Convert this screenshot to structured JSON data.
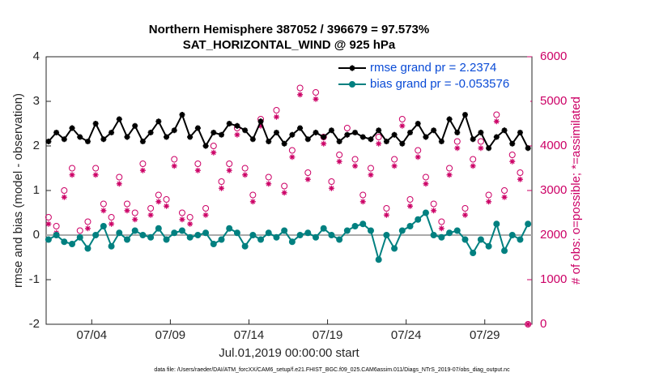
{
  "chart_data": {
    "type": "line",
    "title": "Northern Hemisphere 387052 / 396679 = 97.573%",
    "subtitle": "SAT_HORIZONTAL_WIND @ 925 hPa",
    "x_label": "Jul.01,2019 00:00:00 start",
    "y_label": "rmse and bias (model - observation)",
    "y2_label": "# of obs: o=possible; *=assimilated",
    "footnote": "data file: /Users/raeder/DAI/ATM_forcXX/CAM6_setup/f.e21.FHIST_BGC.f09_025.CAM6assim.011/Diags_NTrS_2019-07/obs_diag_output.nc",
    "x": [
      0.25,
      0.75,
      1.25,
      1.75,
      2.25,
      2.75,
      3.25,
      3.75,
      4.25,
      4.75,
      5.25,
      5.75,
      6.25,
      6.75,
      7.25,
      7.75,
      8.25,
      8.75,
      9.25,
      9.75,
      10.25,
      10.75,
      11.25,
      11.75,
      12.25,
      12.75,
      13.25,
      13.75,
      14.25,
      14.75,
      15.25,
      15.75,
      16.25,
      16.75,
      17.25,
      17.75,
      18.25,
      18.75,
      19.25,
      19.75,
      20.25,
      20.75,
      21.25,
      21.75,
      22.25,
      22.75,
      23.25,
      23.75,
      24.25,
      24.75,
      25.25,
      25.75,
      26.25,
      26.75,
      27.25,
      27.75,
      28.25,
      28.75,
      29.25,
      29.75,
      30.25,
      30.75
    ],
    "xlim": [
      0.1,
      31.0
    ],
    "xticks": [
      {
        "value": 3,
        "label": "07/04"
      },
      {
        "value": 8,
        "label": "07/09"
      },
      {
        "value": 13,
        "label": "07/14"
      },
      {
        "value": 18,
        "label": "07/19"
      },
      {
        "value": 23,
        "label": "07/24"
      },
      {
        "value": 28,
        "label": "07/29"
      }
    ],
    "ylim": [
      -2,
      4
    ],
    "yticks": [
      -2,
      -1,
      0,
      1,
      2,
      3,
      4
    ],
    "y2lim": [
      0,
      6000
    ],
    "y2ticks": [
      0,
      1000,
      2000,
      3000,
      4000,
      5000,
      6000
    ],
    "zero_line": true,
    "legend": "upper right",
    "series": [
      {
        "name": "rmse grand pr = 2.2374",
        "color": "#000000",
        "marker": "asterisk",
        "line": true,
        "values": [
          2.1,
          2.3,
          2.15,
          2.4,
          2.2,
          2.1,
          2.5,
          2.15,
          2.3,
          2.6,
          2.2,
          2.45,
          2.1,
          2.3,
          2.55,
          2.2,
          2.35,
          2.7,
          2.2,
          2.4,
          2.0,
          2.3,
          2.25,
          2.5,
          2.45,
          2.35,
          2.15,
          2.55,
          2.1,
          2.3,
          2.05,
          2.25,
          2.4,
          2.15,
          2.3,
          2.2,
          2.35,
          2.1,
          2.25,
          2.3,
          2.2,
          2.15,
          2.35,
          2.1,
          2.25,
          2.05,
          2.3,
          2.5,
          2.2,
          2.35,
          2.1,
          2.6,
          2.3,
          2.7,
          2.15,
          2.3,
          1.95,
          2.2,
          2.35,
          2.05,
          2.3,
          1.95
        ]
      },
      {
        "name": "bias grand pr = -0.053576",
        "color": "#008080",
        "marker": "circle",
        "line": true,
        "values": [
          -0.1,
          0.0,
          -0.15,
          -0.2,
          -0.05,
          -0.3,
          0.0,
          0.2,
          -0.25,
          0.05,
          -0.1,
          0.1,
          0.0,
          -0.05,
          0.15,
          -0.1,
          0.05,
          0.1,
          -0.05,
          0.0,
          0.05,
          -0.2,
          -0.1,
          0.15,
          0.05,
          -0.25,
          0.0,
          -0.1,
          0.05,
          -0.05,
          0.1,
          -0.15,
          0.0,
          0.05,
          -0.05,
          0.15,
          0.0,
          -0.1,
          0.1,
          0.2,
          0.25,
          0.1,
          -0.55,
          0.0,
          -0.3,
          0.1,
          0.2,
          0.35,
          0.5,
          0.0,
          -0.05,
          0.05,
          0.1,
          -0.1,
          -0.4,
          -0.1,
          -0.25,
          0.25,
          -0.35,
          0.0,
          -0.1,
          0.25
        ]
      },
      {
        "color": "#cc0066",
        "marker": "open-circle",
        "line": false,
        "axis": "y2",
        "values": [
          2400,
          2200,
          3000,
          3500,
          2100,
          2300,
          3500,
          2700,
          2400,
          3300,
          2700,
          2500,
          3600,
          2600,
          2900,
          2800,
          3700,
          2500,
          2400,
          3600,
          2600,
          4000,
          3200,
          3600,
          4400,
          3500,
          2900,
          4600,
          3300,
          4800,
          3100,
          3900,
          5300,
          3400,
          5200,
          4200,
          3200,
          3800,
          4400,
          3700,
          2900,
          3500,
          4200,
          2600,
          3700,
          4600,
          2800,
          3900,
          3300,
          2700,
          2300,
          3500,
          4100,
          2600,
          3700,
          4100,
          2900,
          4700,
          3000,
          3800,
          3400,
          0
        ]
      },
      {
        "color": "#cc0066",
        "marker": "asterisk",
        "line": false,
        "axis": "y2",
        "values": [
          2250,
          2050,
          2850,
          3350,
          1950,
          2150,
          3350,
          2550,
          2250,
          3150,
          2550,
          2350,
          3450,
          2450,
          2750,
          2650,
          3550,
          2350,
          2250,
          3450,
          2450,
          3850,
          3050,
          3450,
          4250,
          3350,
          2750,
          4450,
          3150,
          4650,
          2950,
          3750,
          5150,
          3250,
          5050,
          4050,
          3050,
          3650,
          4250,
          3550,
          2750,
          3350,
          4050,
          2450,
          3550,
          4450,
          2650,
          3750,
          3150,
          2550,
          2150,
          3350,
          3950,
          2450,
          3550,
          3950,
          2750,
          4550,
          2850,
          3650,
          3250,
          0
        ]
      }
    ]
  }
}
